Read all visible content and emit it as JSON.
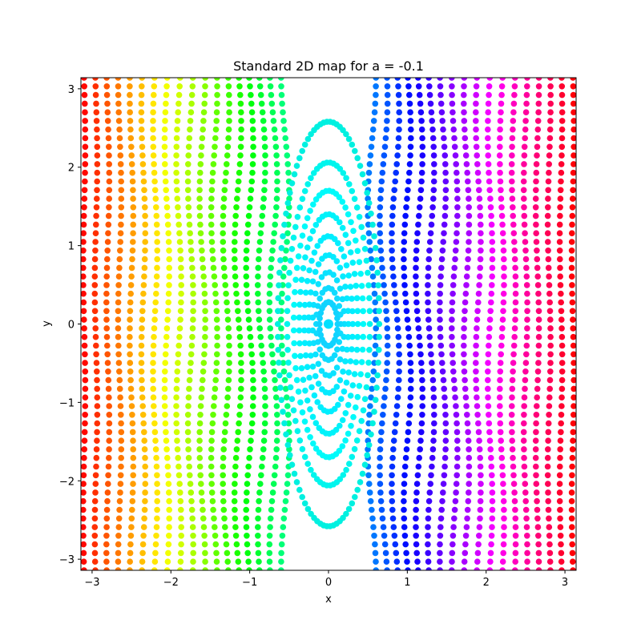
{
  "chart_data": {
    "type": "scatter",
    "title": "Standard 2D map for a = -0.1",
    "xlabel": "x",
    "ylabel": "y",
    "xlim": [
      -3.14159,
      3.14159
    ],
    "ylim": [
      -3.14159,
      3.14159
    ],
    "x_ticks": [
      -3,
      -2,
      -1,
      0,
      1,
      2,
      3
    ],
    "y_ticks": [
      -3,
      -2,
      -1,
      0,
      1,
      2,
      3
    ],
    "x_tick_labels": [
      "−3",
      "−2",
      "−1",
      "0",
      "1",
      "2",
      "3"
    ],
    "y_tick_labels": [
      "−3",
      "−2",
      "−1",
      "0",
      "1",
      "2",
      "3"
    ],
    "grid": false,
    "legend": "none",
    "colormap": "hsv (hue by initial x)",
    "map": "standard map",
    "parameter_a": -0.1,
    "marker": "filled circle",
    "series": [
      {
        "kind": "islands",
        "center": [
          0,
          0
        ],
        "y_half_extents": [
          2.58,
          2.06,
          1.7,
          1.4,
          1.12,
          0.88,
          0.66,
          0.46,
          0.28
        ],
        "color": "#00a0ff"
      },
      {
        "kind": "rotational",
        "x0_values": [
          -3.1,
          -2.95,
          -2.8,
          -2.65,
          -2.5,
          -2.35,
          -2.2,
          -2.05,
          -1.9,
          -1.75,
          -1.6,
          -1.45,
          -1.3,
          -1.15,
          -1.0,
          -0.85,
          -0.7,
          -0.55,
          0.55,
          0.7,
          0.85,
          1.0,
          1.15,
          1.3,
          1.45,
          1.6,
          1.75,
          1.9,
          2.05,
          2.2,
          2.35,
          2.5,
          2.65,
          2.8,
          2.95,
          3.1
        ]
      }
    ]
  }
}
